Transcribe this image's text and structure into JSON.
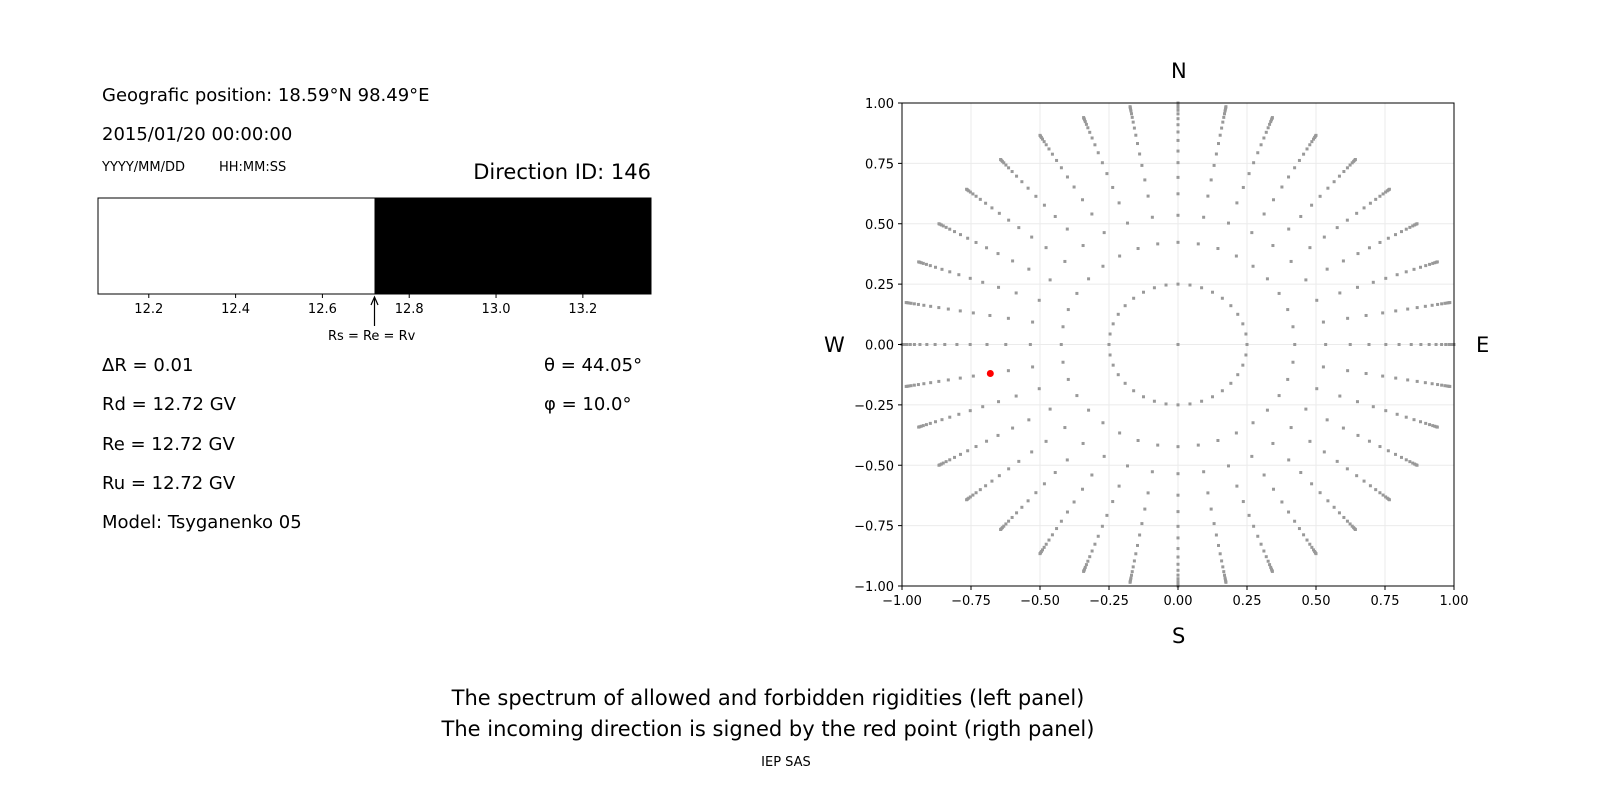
{
  "left_panel": {
    "position": "Geografic position: 18.59°N 98.49°E",
    "datetime": "2015/01/20 00:00:00",
    "date_format": "YYYY/MM/DD",
    "time_format": "HH:MM:SS",
    "direction_id": "Direction ID: 146",
    "marker_label": "Rs = Re = Rv",
    "delta_r": "ΔR = 0.01",
    "rd": "Rd = 12.72 GV",
    "re": "Re = 12.72 GV",
    "ru": "Ru = 12.72 GV",
    "model": "Model: Tsyganenko 05",
    "theta": "θ = 44.05°",
    "phi": "φ = 10.0°"
  },
  "right_panel": {
    "north": "N",
    "south": "S",
    "west": "W",
    "east": "E"
  },
  "caption": {
    "line1": "The spectrum of allowed and forbidden rigidities (left panel)",
    "line2": "The incoming direction is signed by the red point (rigth panel)",
    "credit": "IEP SAS"
  },
  "chart_data": [
    {
      "type": "bar",
      "title": "",
      "xlim": [
        12.083,
        13.357
      ],
      "ticks": [
        "12.2",
        "12.4",
        "12.6",
        "12.8",
        "13.0",
        "13.2"
      ],
      "tick_values": [
        12.2,
        12.4,
        12.6,
        12.8,
        13.0,
        13.2
      ],
      "allowed_color": "#ffffff",
      "forbidden_color": "#000000",
      "segments": [
        {
          "from": 12.083,
          "to": 12.72,
          "state": "allowed"
        },
        {
          "from": 12.72,
          "to": 13.357,
          "state": "forbidden"
        }
      ],
      "marker_value": 12.72
    },
    {
      "type": "scatter",
      "xlim": [
        -1,
        1
      ],
      "ylim": [
        -1,
        1
      ],
      "ticks": [
        "−1.00",
        "−0.75",
        "−0.50",
        "−0.25",
        "0.00",
        "0.25",
        "0.50",
        "0.75",
        "1.00"
      ],
      "tick_values": [
        -1,
        -0.75,
        -0.5,
        -0.25,
        0,
        0.25,
        0.5,
        0.75,
        1
      ],
      "grid": true,
      "point_color": "#999999",
      "highlight_color": "#ff0000",
      "azimuth_step_deg": 10,
      "radii": [
        0.25,
        0.423,
        0.535,
        0.624,
        0.692,
        0.753,
        0.801,
        0.845,
        0.88,
        0.91,
        0.935,
        0.955,
        0.97,
        0.982,
        0.99,
        0.996,
        1.0
      ],
      "center_point": [
        0,
        0
      ],
      "highlight_point": [
        -0.68,
        -0.12
      ]
    }
  ]
}
